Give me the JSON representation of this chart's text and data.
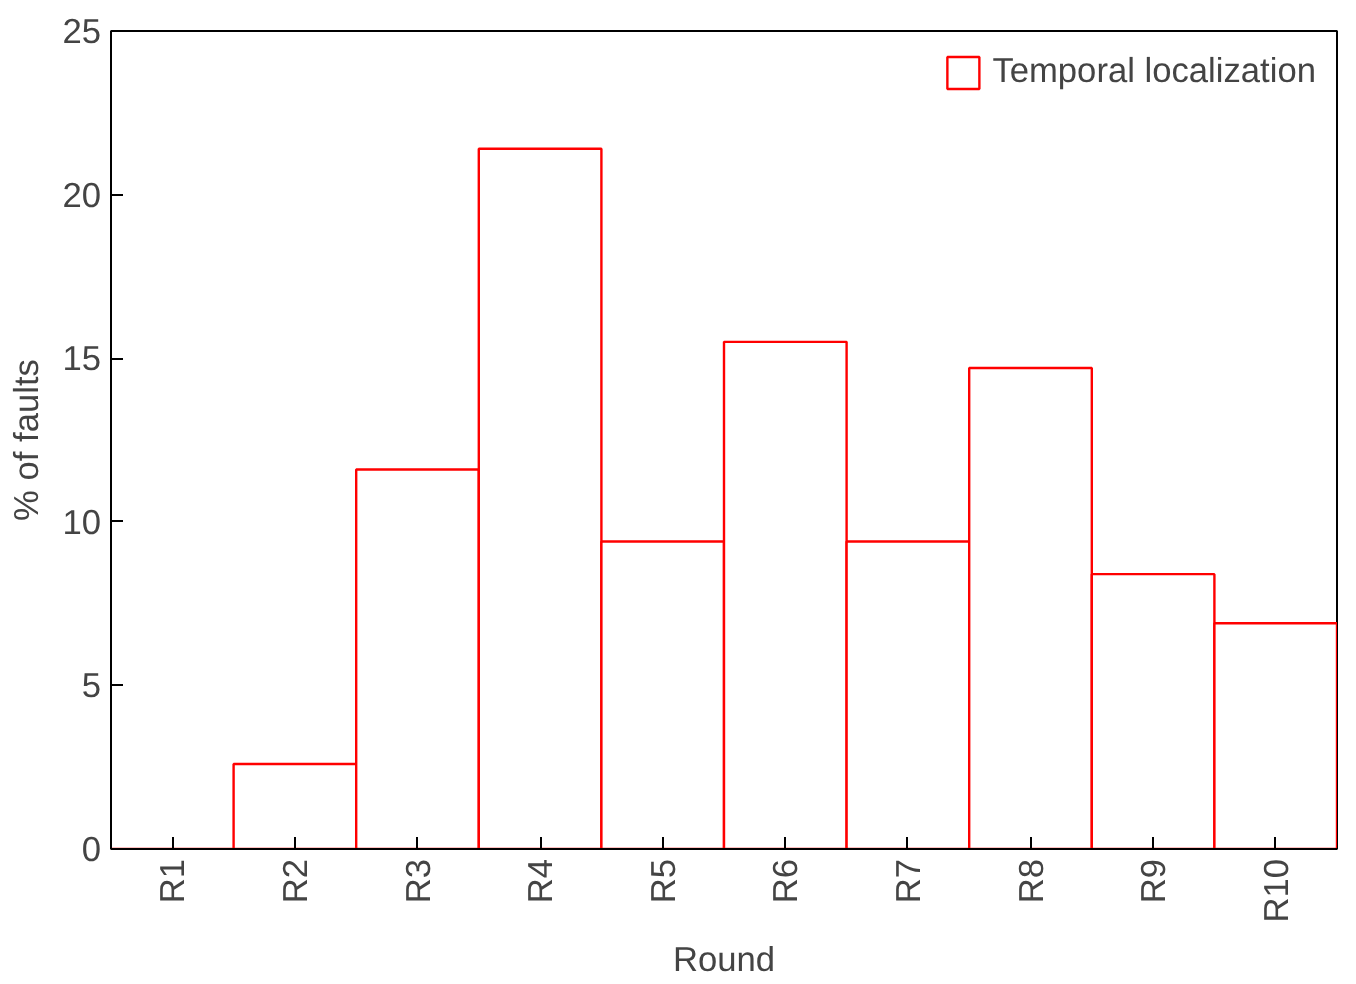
{
  "chart_data": {
    "type": "bar",
    "xlabel": "Round",
    "ylabel": "% of faults",
    "categories": [
      "R1",
      "R2",
      "R3",
      "R4",
      "R5",
      "R6",
      "R7",
      "R8",
      "R9",
      "R10"
    ],
    "series": [
      {
        "name": "Temporal localization",
        "color": "#ff0000",
        "values": [
          0,
          2.6,
          11.6,
          21.4,
          9.4,
          15.5,
          9.4,
          14.7,
          8.4,
          6.9
        ]
      }
    ],
    "ylim": [
      0,
      25
    ],
    "yticks": [
      0,
      5,
      10,
      15,
      20,
      25
    ],
    "grid": false,
    "legend": "top right"
  }
}
